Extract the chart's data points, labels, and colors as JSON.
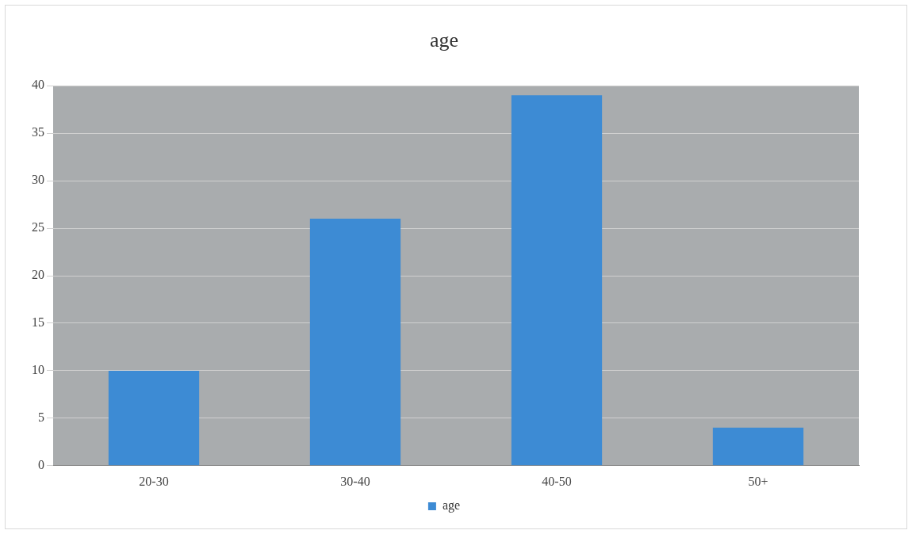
{
  "chart_data": {
    "type": "bar",
    "title": "age",
    "categories": [
      "20-30",
      "30-40",
      "40-50",
      "50+"
    ],
    "series": [
      {
        "name": "age",
        "color": "#3d8bd4",
        "values": [
          10,
          26,
          39,
          4
        ]
      }
    ],
    "ylim": [
      0,
      40
    ],
    "yticks": [
      0,
      5,
      10,
      15,
      20,
      25,
      30,
      35,
      40
    ],
    "grid": "y",
    "legend": "bottom"
  }
}
